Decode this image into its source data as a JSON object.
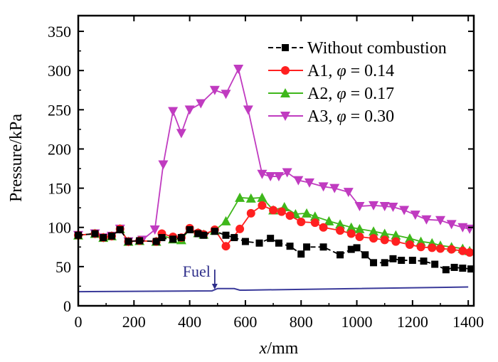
{
  "chart_data": {
    "type": "line",
    "xlabel_italic": "x",
    "xlabel_rest": "/mm",
    "ylabel": "Pressure/kPa",
    "xlim": [
      0,
      1420
    ],
    "ylim": [
      0,
      370
    ],
    "xticks": [
      0,
      200,
      400,
      600,
      800,
      1000,
      1200,
      1400
    ],
    "yticks": [
      0,
      50,
      100,
      150,
      200,
      250,
      300,
      350
    ],
    "legend_position": "top-right",
    "series": [
      {
        "name": "Without combustion",
        "label": "Without combustion",
        "color": "#000000",
        "marker": "square",
        "dashed": true,
        "x": [
          0,
          60,
          90,
          120,
          150,
          180,
          220,
          280,
          300,
          340,
          370,
          400,
          430,
          450,
          490,
          530,
          560,
          600,
          650,
          690,
          720,
          760,
          800,
          820,
          880,
          940,
          980,
          1000,
          1030,
          1060,
          1100,
          1130,
          1160,
          1200,
          1240,
          1280,
          1320,
          1350,
          1380,
          1410
        ],
        "y": [
          90,
          92,
          87,
          89,
          97,
          82,
          83,
          82,
          87,
          85,
          87,
          97,
          92,
          90,
          95,
          90,
          87,
          82,
          80,
          86,
          80,
          76,
          66,
          75,
          75,
          65,
          72,
          74,
          65,
          55,
          55,
          60,
          58,
          58,
          57,
          53,
          46,
          49,
          48,
          47
        ],
        "points": [
          [
            0,
            90
          ],
          [
            60,
            92
          ],
          [
            90,
            87
          ],
          [
            120,
            89
          ],
          [
            150,
            97
          ],
          [
            180,
            82
          ],
          [
            220,
            83
          ],
          [
            280,
            82
          ],
          [
            300,
            87
          ],
          [
            340,
            85
          ],
          [
            370,
            87
          ],
          [
            400,
            97
          ],
          [
            430,
            92
          ],
          [
            450,
            90
          ],
          [
            490,
            95
          ],
          [
            530,
            90
          ],
          [
            560,
            87
          ],
          [
            600,
            82
          ],
          [
            650,
            80
          ],
          [
            690,
            86
          ],
          [
            720,
            80
          ],
          [
            760,
            76
          ],
          [
            800,
            66
          ],
          [
            820,
            75
          ],
          [
            880,
            75
          ],
          [
            940,
            65
          ],
          [
            980,
            72
          ],
          [
            1000,
            74
          ],
          [
            1030,
            65
          ],
          [
            1060,
            55
          ],
          [
            1100,
            55
          ],
          [
            1130,
            60
          ],
          [
            1160,
            58
          ],
          [
            1200,
            58
          ],
          [
            1240,
            57
          ],
          [
            1280,
            53
          ],
          [
            1320,
            46
          ],
          [
            1350,
            49
          ],
          [
            1380,
            48
          ],
          [
            1410,
            47
          ]
        ]
      },
      {
        "name": "A1",
        "label_main": "A1, ",
        "label_phi": "φ",
        "label_value": " = 0.14",
        "color": "#ff2020",
        "marker": "circle",
        "dashed": false,
        "points": [
          [
            0,
            90
          ],
          [
            60,
            92
          ],
          [
            90,
            87
          ],
          [
            120,
            89
          ],
          [
            150,
            98
          ],
          [
            180,
            82
          ],
          [
            220,
            83
          ],
          [
            280,
            82
          ],
          [
            300,
            92
          ],
          [
            340,
            88
          ],
          [
            370,
            87
          ],
          [
            400,
            99
          ],
          [
            430,
            93
          ],
          [
            450,
            91
          ],
          [
            490,
            97
          ],
          [
            530,
            76
          ],
          [
            580,
            98
          ],
          [
            620,
            118
          ],
          [
            660,
            128
          ],
          [
            700,
            122
          ],
          [
            730,
            120
          ],
          [
            760,
            115
          ],
          [
            800,
            107
          ],
          [
            850,
            106
          ],
          [
            880,
            100
          ],
          [
            940,
            96
          ],
          [
            980,
            92
          ],
          [
            1010,
            88
          ],
          [
            1060,
            86
          ],
          [
            1100,
            84
          ],
          [
            1140,
            82
          ],
          [
            1190,
            78
          ],
          [
            1230,
            75
          ],
          [
            1270,
            74
          ],
          [
            1300,
            73
          ],
          [
            1340,
            72
          ],
          [
            1380,
            70
          ],
          [
            1405,
            68
          ]
        ]
      },
      {
        "name": "A2",
        "label_main": "A2, ",
        "label_phi": "φ",
        "label_value": " = 0.17",
        "color": "#3fb71b",
        "marker": "triangle-up",
        "dashed": false,
        "points": [
          [
            0,
            90
          ],
          [
            60,
            92
          ],
          [
            90,
            87
          ],
          [
            120,
            89
          ],
          [
            150,
            98
          ],
          [
            180,
            82
          ],
          [
            220,
            83
          ],
          [
            280,
            82
          ],
          [
            300,
            90
          ],
          [
            340,
            85
          ],
          [
            370,
            84
          ],
          [
            400,
            98
          ],
          [
            430,
            93
          ],
          [
            450,
            91
          ],
          [
            490,
            96
          ],
          [
            530,
            108
          ],
          [
            580,
            138
          ],
          [
            620,
            137
          ],
          [
            660,
            138
          ],
          [
            700,
            122
          ],
          [
            740,
            126
          ],
          [
            780,
            117
          ],
          [
            820,
            118
          ],
          [
            850,
            114
          ],
          [
            900,
            108
          ],
          [
            940,
            104
          ],
          [
            980,
            100
          ],
          [
            1010,
            98
          ],
          [
            1060,
            95
          ],
          [
            1100,
            92
          ],
          [
            1140,
            90
          ],
          [
            1190,
            86
          ],
          [
            1230,
            82
          ],
          [
            1270,
            80
          ],
          [
            1300,
            77
          ],
          [
            1340,
            75
          ],
          [
            1380,
            73
          ],
          [
            1405,
            70
          ]
        ]
      },
      {
        "name": "A3",
        "label_main": "A3, ",
        "label_phi": "φ",
        "label_value": " = 0.30",
        "color": "#c03bc0",
        "marker": "triangle-down",
        "dashed": false,
        "points": [
          [
            0,
            90
          ],
          [
            60,
            92
          ],
          [
            90,
            87
          ],
          [
            120,
            89
          ],
          [
            150,
            98
          ],
          [
            180,
            82
          ],
          [
            230,
            84
          ],
          [
            275,
            97
          ],
          [
            305,
            180
          ],
          [
            340,
            248
          ],
          [
            370,
            220
          ],
          [
            400,
            250
          ],
          [
            440,
            258
          ],
          [
            490,
            275
          ],
          [
            530,
            270
          ],
          [
            575,
            302
          ],
          [
            610,
            250
          ],
          [
            660,
            168
          ],
          [
            690,
            165
          ],
          [
            720,
            165
          ],
          [
            750,
            170
          ],
          [
            790,
            160
          ],
          [
            830,
            157
          ],
          [
            880,
            152
          ],
          [
            920,
            150
          ],
          [
            970,
            145
          ],
          [
            1010,
            127
          ],
          [
            1060,
            128
          ],
          [
            1100,
            127
          ],
          [
            1130,
            126
          ],
          [
            1170,
            122
          ],
          [
            1210,
            116
          ],
          [
            1250,
            110
          ],
          [
            1300,
            109
          ],
          [
            1340,
            104
          ],
          [
            1380,
            100
          ],
          [
            1405,
            98
          ]
        ]
      }
    ],
    "fuel_line": {
      "name": "Fuel injection trace",
      "color": "#3a3a9a",
      "points": [
        [
          0,
          18
        ],
        [
          480,
          19
        ],
        [
          500,
          22
        ],
        [
          560,
          22
        ],
        [
          580,
          20
        ],
        [
          600,
          20
        ],
        [
          1000,
          22
        ],
        [
          1400,
          24
        ]
      ]
    },
    "annotation": {
      "text": "Fuel",
      "x": 490,
      "y": 19,
      "color": "#2e2e8a"
    }
  }
}
